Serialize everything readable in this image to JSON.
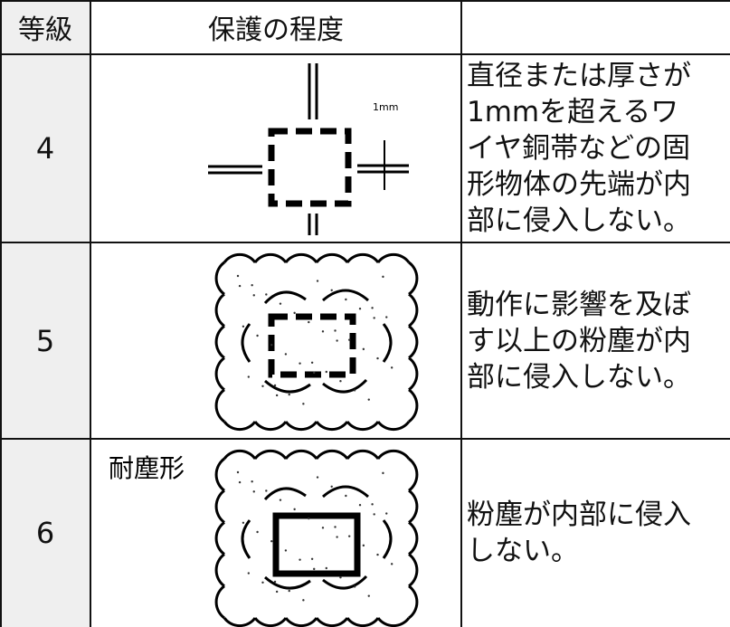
{
  "header": {
    "grade": "等級",
    "protection": "保護の程度"
  },
  "rows": [
    {
      "grade": "4",
      "icon_label": "1mm",
      "description": [
        "直径または厚さが",
        "1mmを超えるワ",
        "イヤ銅帯などの固",
        "形物体の先端が内",
        "部に侵入しない。"
      ]
    },
    {
      "grade": "5",
      "description": [
        "動作に影響を及ぼ",
        "す以上の粉塵が内",
        "部に侵入しない。"
      ]
    },
    {
      "grade": "6",
      "icon_label": "耐塵形",
      "description": [
        "粉塵が内部に侵入",
        "しない。"
      ]
    }
  ]
}
